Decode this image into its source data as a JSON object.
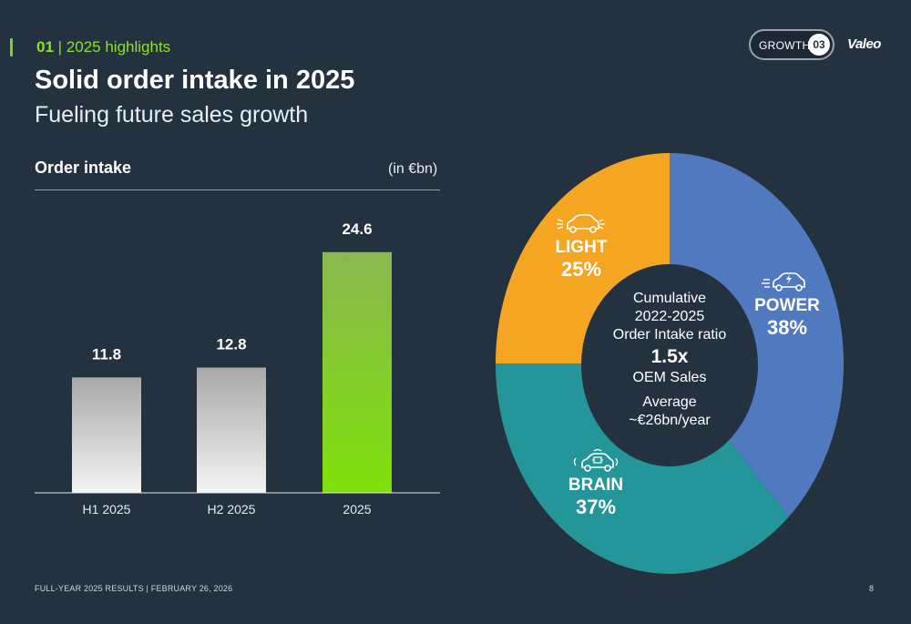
{
  "header": {
    "section_number": "01",
    "section_label": "| 2025 highlights",
    "title": "Solid order intake in 2025",
    "subtitle": "Fueling future sales growth",
    "badge_label": "GROWTH",
    "badge_number": "03",
    "brand": "Valeo"
  },
  "chart_data": [
    {
      "type": "bar",
      "title": "Order intake",
      "unit": "(in €bn)",
      "categories": [
        "H1 2025",
        "H2 2025",
        "2025"
      ],
      "values": [
        11.8,
        12.8,
        24.6
      ],
      "value_labels": [
        "11.8",
        "12.8",
        "24.6"
      ],
      "colors": {
        "bar": "#c9c9c9",
        "highlight": "#7fd816"
      },
      "highlight_index": 2,
      "ylim": [
        0,
        27
      ],
      "grid": false
    },
    {
      "type": "pie",
      "style": "donut",
      "slices": [
        {
          "name": "POWER",
          "value": 38,
          "label": "38%",
          "color": "#5179bf"
        },
        {
          "name": "BRAIN",
          "value": 37,
          "label": "37%",
          "color": "#24969a"
        },
        {
          "name": "LIGHT",
          "value": 25,
          "label": "25%",
          "color": "#f4a623"
        }
      ],
      "center_text": {
        "line1": "Cumulative",
        "line2": "2022-2025",
        "line3": "Order Intake ratio",
        "ratio": "1.5x",
        "line5": "OEM Sales",
        "line6": "Average",
        "line7": "~€26bn/year"
      },
      "center_color": "#243240"
    }
  ],
  "icons": {
    "light": "car-light-icon",
    "power": "electric-car-icon",
    "brain": "connected-car-icon"
  },
  "footer": {
    "text": "FULL-YEAR 2025 RESULTS | FEBRUARY 26, 2026",
    "page": "8"
  }
}
